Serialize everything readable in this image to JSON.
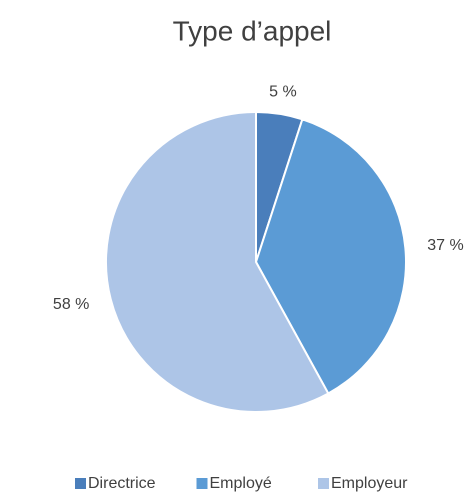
{
  "chart_data": {
    "type": "pie",
    "title": "Type d’appel",
    "categories": [
      "Directrice",
      "Employé",
      "Employeur"
    ],
    "values": [
      5,
      37,
      58
    ],
    "value_labels": [
      "5 %",
      "37 %",
      "58 %"
    ],
    "colors": [
      "#4a7ebb",
      "#5b9bd5",
      "#adc5e7"
    ],
    "legend": "bottom"
  }
}
